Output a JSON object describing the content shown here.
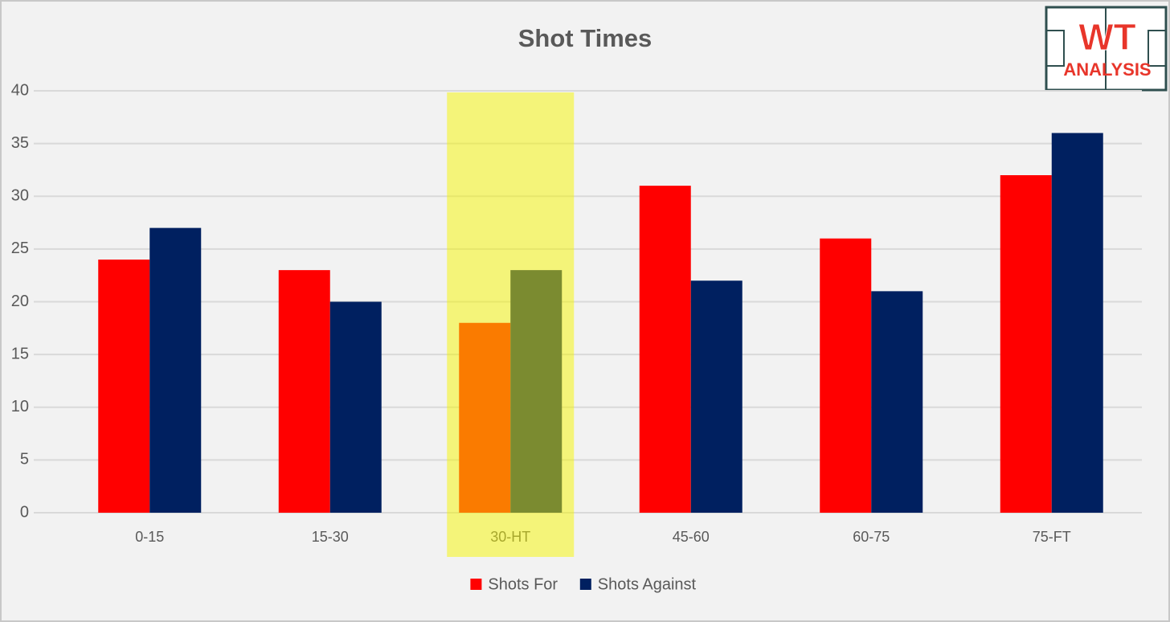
{
  "chart_data": {
    "type": "bar",
    "title": "Shot Times",
    "categories": [
      "0-15",
      "15-30",
      "30-HT",
      "45-60",
      "60-75",
      "75-FT"
    ],
    "series": [
      {
        "name": "Shots For",
        "color": "#ff0000",
        "values": [
          24,
          23,
          18,
          31,
          26,
          32
        ]
      },
      {
        "name": "Shots Against",
        "color": "#002060",
        "values": [
          27,
          20,
          23,
          22,
          21,
          36
        ]
      }
    ],
    "ylim": [
      0,
      40
    ],
    "yticks": [
      0,
      5,
      10,
      15,
      20,
      25,
      30,
      35,
      40
    ],
    "grid": true,
    "legend": "bottom",
    "highlight_index": 2,
    "highlight_color": "#f5f500"
  },
  "logo": {
    "line1": "WT",
    "line2": "ANALYSIS"
  }
}
